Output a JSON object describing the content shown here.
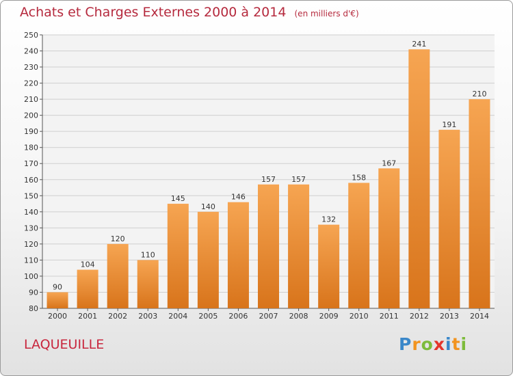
{
  "chart_data": {
    "type": "bar",
    "title": "Achats et Charges Externes 2000 à 2014",
    "subtitle": "(en milliers d'€)",
    "categories": [
      "2000",
      "2001",
      "2002",
      "2003",
      "2004",
      "2005",
      "2006",
      "2007",
      "2008",
      "2009",
      "2010",
      "2011",
      "2012",
      "2013",
      "2014"
    ],
    "values": [
      90,
      104,
      120,
      110,
      145,
      140,
      146,
      157,
      157,
      132,
      158,
      167,
      241,
      191,
      210
    ],
    "ylim": [
      80,
      250
    ],
    "yticks": [
      80,
      90,
      100,
      110,
      120,
      130,
      140,
      150,
      160,
      170,
      180,
      190,
      200,
      210,
      220,
      230,
      240,
      250
    ],
    "grid": true,
    "bar_color_top": "#f6a552",
    "bar_color_bottom": "#d8741b"
  },
  "location": "LAQUEUILLE",
  "brand": {
    "letters": [
      "P",
      "r",
      "o",
      "x",
      "i",
      "t",
      "i"
    ],
    "colors": [
      "#3a87c9",
      "#f29420",
      "#7dbb3b",
      "#e5352b",
      "#3a87c9",
      "#f29420",
      "#7dbb3b"
    ]
  }
}
